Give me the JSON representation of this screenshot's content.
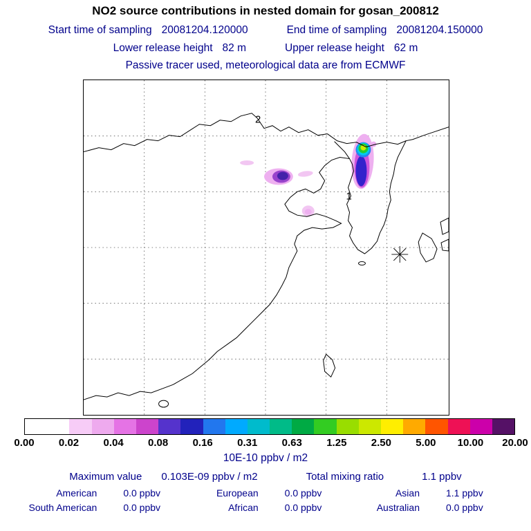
{
  "title": "NO2 source contributions in nested domain for gosan_200812",
  "header": {
    "sampling": {
      "start_label": "Start time of sampling",
      "start_value": "20081204.120000",
      "end_label": "End time of sampling",
      "end_value": "20081204.150000"
    },
    "release": {
      "lower_label": "Lower release height",
      "lower_value": "82 m",
      "upper_label": "Upper release height",
      "upper_value": "62 m"
    },
    "tracer_note": "Passive tracer used, meteorological data are from ECMWF"
  },
  "map": {
    "markers": {
      "source1": "1",
      "source2": "2"
    },
    "plume_colors": {
      "pale": "#f2c6f2",
      "pink": "#eeb0f0",
      "magenta": "#cc55dd",
      "indigo": "#3322cc",
      "blue": "#2288ee",
      "cyan": "#00ccee",
      "green": "#22cc33",
      "yellow": "#ccee00",
      "purple": "#9944cc",
      "darkpurple": "#4422aa"
    }
  },
  "colorbar": {
    "labels": [
      "0.00",
      "0.02",
      "0.04",
      "0.08",
      "0.16",
      "0.31",
      "0.63",
      "1.25",
      "2.50",
      "5.00",
      "10.00",
      "20.00"
    ],
    "cells": [
      "#ffffff",
      "#ffffff",
      "#f7ccf7",
      "#eeaaee",
      "#e573e5",
      "#cc44cc",
      "#5533cc",
      "#2222bb",
      "#2277ee",
      "#00aaff",
      "#00bbcc",
      "#00bb88",
      "#00aa44",
      "#33cc22",
      "#99dd00",
      "#cce800",
      "#ffee00",
      "#ffaa00",
      "#ff5500",
      "#ee1155",
      "#cc00aa",
      "#551166"
    ],
    "units": "10E-10 ppbv / m2"
  },
  "stats": {
    "maximum_label": "Maximum value",
    "maximum_value": "0.103E-09 ppbv / m2",
    "total_label": "Total mixing ratio",
    "total_value": "1.1 ppbv",
    "regions": [
      {
        "name": "American",
        "value": "0.0 ppbv"
      },
      {
        "name": "European",
        "value": "0.0 ppbv"
      },
      {
        "name": "Asian",
        "value": "1.1 ppbv"
      },
      {
        "name": "South American",
        "value": "0.0 ppbv"
      },
      {
        "name": "African",
        "value": "0.0 ppbv"
      },
      {
        "name": "Australian",
        "value": "0.0 ppbv"
      }
    ]
  },
  "chart_data": {
    "type": "heatmap",
    "title": "NO2 source contributions in nested domain for gosan_200812",
    "subtitle": "Passive tracer used, meteorological data are from ECMWF",
    "start_time": "20081204.120000",
    "end_time": "20081204.150000",
    "lower_release_height_m": 82,
    "upper_release_height_m": 62,
    "colorbar_units": "10E-10 ppbv / m2",
    "scale_ticks": [
      0.0,
      0.02,
      0.04,
      0.08,
      0.16,
      0.31,
      0.63,
      1.25,
      2.5,
      5.0,
      10.0,
      20.0
    ],
    "maximum_value": "0.103E-09 ppbv / m2",
    "total_mixing_ratio_ppbv": 1.1,
    "region_contributions_ppbv": {
      "American": 0.0,
      "European": 0.0,
      "Asian": 1.1,
      "South American": 0.0,
      "African": 0.0,
      "Australian": 0.0
    },
    "source_markers": [
      "1",
      "2"
    ],
    "receptor": "gosan (star symbol on map)",
    "legend_position": "bottom",
    "grid": "dashed lat-lon grid, 6x6 cells, no tick labels"
  }
}
